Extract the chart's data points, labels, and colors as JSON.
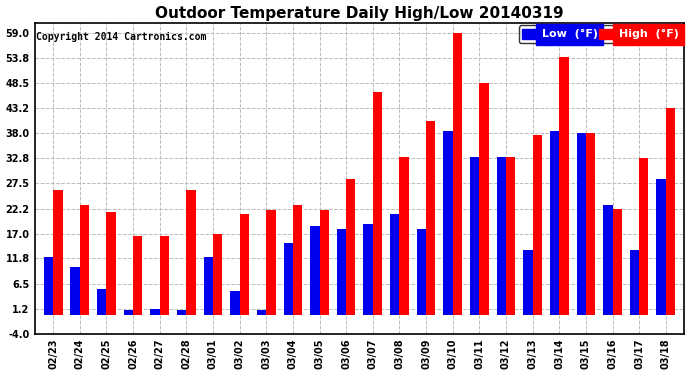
{
  "title": "Outdoor Temperature Daily High/Low 20140319",
  "copyright": "Copyright 2014 Cartronics.com",
  "legend_low": "Low  (°F)",
  "legend_high": "High  (°F)",
  "dates": [
    "02/23",
    "02/24",
    "02/25",
    "02/26",
    "02/27",
    "02/28",
    "03/01",
    "03/02",
    "03/03",
    "03/04",
    "03/05",
    "03/06",
    "03/07",
    "03/08",
    "03/09",
    "03/10",
    "03/11",
    "03/12",
    "03/13",
    "03/14",
    "03/15",
    "03/16",
    "03/17",
    "03/18"
  ],
  "high": [
    26.0,
    23.0,
    21.5,
    16.5,
    16.5,
    26.0,
    17.0,
    21.0,
    22.0,
    23.0,
    22.0,
    28.5,
    46.5,
    33.0,
    40.5,
    59.0,
    48.5,
    33.0,
    37.5,
    54.0,
    38.0,
    22.2,
    32.8,
    43.2
  ],
  "low": [
    12.0,
    10.0,
    5.5,
    1.0,
    1.2,
    1.0,
    12.0,
    5.0,
    1.0,
    15.0,
    18.5,
    18.0,
    19.0,
    21.0,
    18.0,
    38.5,
    33.0,
    33.0,
    13.5,
    38.5,
    38.0,
    23.0,
    13.5,
    28.5
  ],
  "ylim_low": -4.0,
  "ylim_high": 61.0,
  "yticks": [
    -4.0,
    1.2,
    6.5,
    11.8,
    17.0,
    22.2,
    27.5,
    32.8,
    38.0,
    43.2,
    48.5,
    53.8,
    59.0
  ],
  "bg_color": "#ffffff",
  "grid_color": "#bbbbbb",
  "bar_color_high": "#ff0000",
  "bar_color_low": "#0000ee",
  "title_fontsize": 11,
  "copyright_fontsize": 7,
  "tick_fontsize": 7,
  "legend_fontsize": 8,
  "bar_width": 0.35,
  "figwidth": 6.9,
  "figheight": 3.75,
  "dpi": 100
}
